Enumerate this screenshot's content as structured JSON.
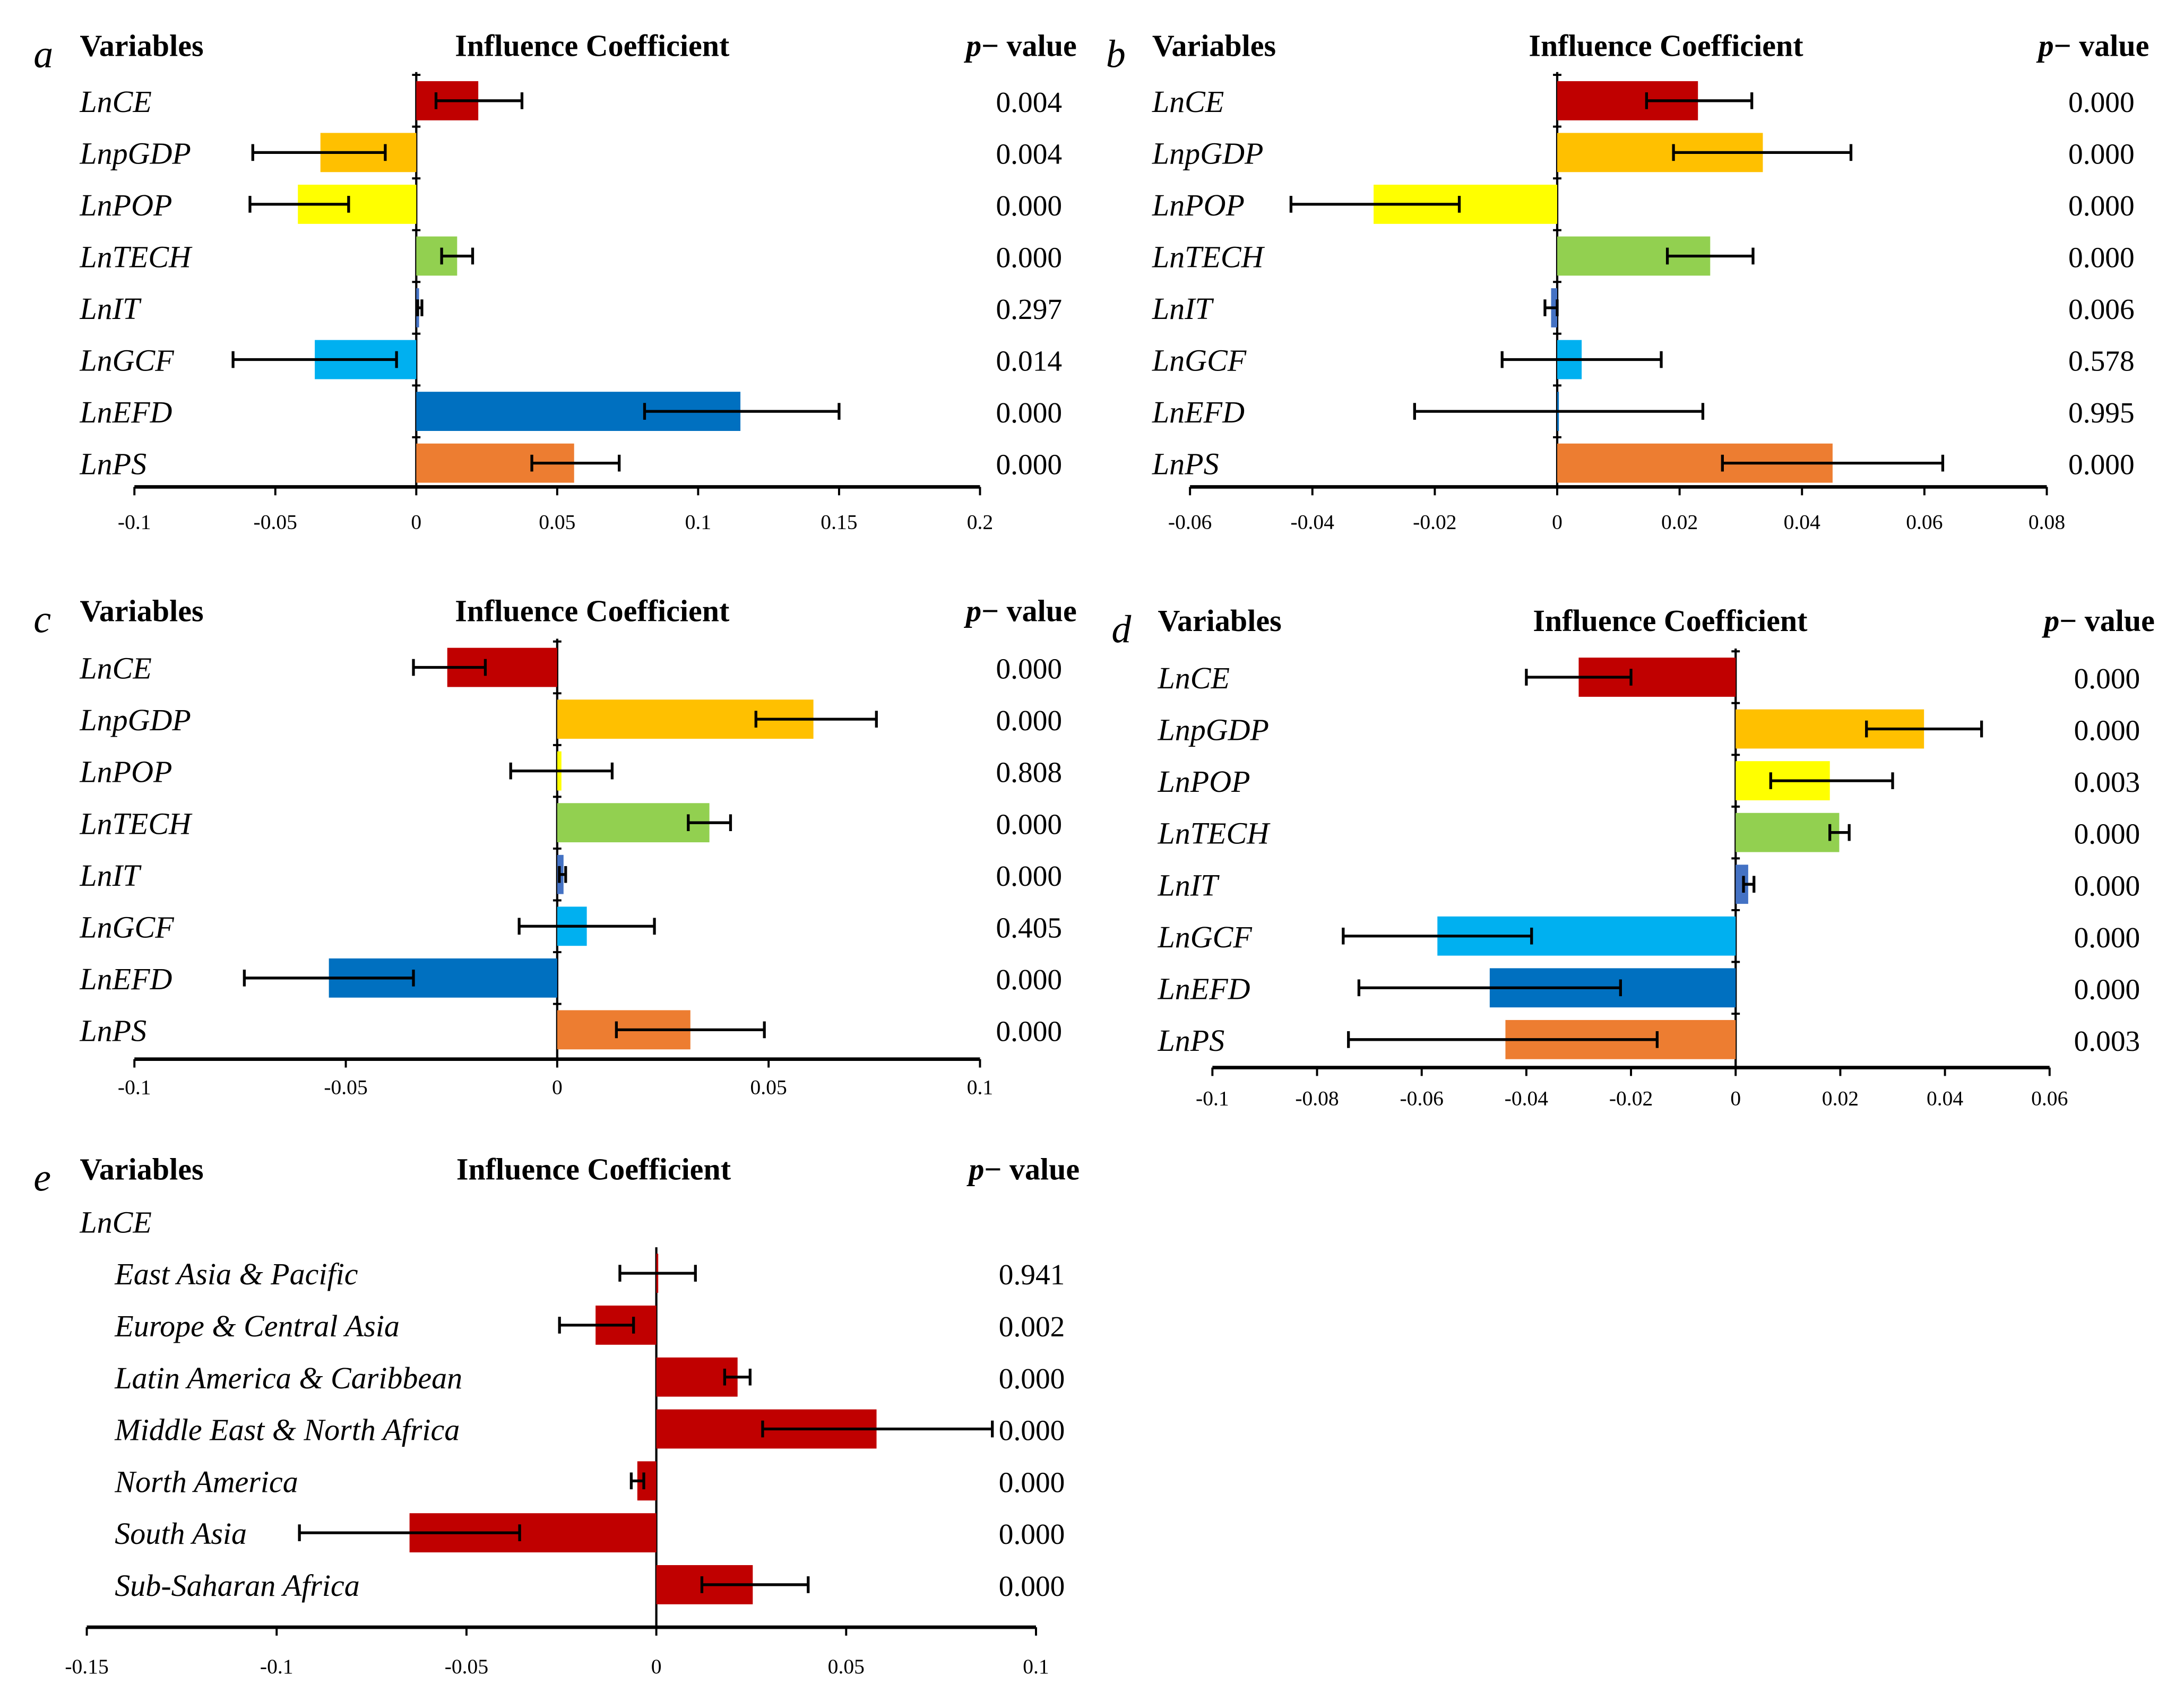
{
  "headers": {
    "variables": "Variables",
    "coefficient": "Influence Coefficient",
    "p_prefix": "p",
    "p_suffix": "− value"
  },
  "colors": {
    "LnCE": "#C00000",
    "LnpGDP": "#FFC000",
    "LnPOP": "#FFFF00",
    "LnTECH": "#92D050",
    "LnIT": "#4472C4",
    "LnGCF": "#00B0F0",
    "LnEFD": "#0070C0",
    "LnPS": "#ED7D31",
    "region": "#C00000"
  },
  "chart_data": [
    {
      "panel": "a",
      "type": "bar",
      "orientation": "horizontal",
      "xlim": [
        -0.1,
        0.2
      ],
      "ticks": [
        "-0.1",
        "-0.05",
        "0",
        "0.05",
        "0.1",
        "0.15",
        "0.2"
      ],
      "tick_values": [
        -0.1,
        -0.05,
        0,
        0.05,
        0.1,
        0.15,
        0.2
      ],
      "variables": [
        "LnCE",
        "LnpGDP",
        "LnPOP",
        "LnTECH",
        "LnIT",
        "LnGCF",
        "LnEFD",
        "LnPS"
      ],
      "values": [
        0.022,
        -0.034,
        -0.042,
        0.0145,
        0.001,
        -0.036,
        0.115,
        0.056
      ],
      "ci": [
        [
          0.007,
          0.0375
        ],
        [
          -0.058,
          -0.011
        ],
        [
          -0.059,
          -0.024
        ],
        [
          0.009,
          0.02
        ],
        [
          0.0005,
          0.002
        ],
        [
          -0.065,
          -0.007
        ],
        [
          0.081,
          0.15
        ],
        [
          0.041,
          0.072
        ]
      ],
      "p_values": [
        "0.004",
        "0.004",
        "0.000",
        "0.000",
        "0.297",
        "0.014",
        "0.000",
        "0.000"
      ]
    },
    {
      "panel": "b",
      "type": "bar",
      "orientation": "horizontal",
      "xlim": [
        -0.06,
        0.08
      ],
      "ticks": [
        "-0.06",
        "-0.04",
        "-0.02",
        "0",
        "0.02",
        "0.04",
        "0.06",
        "0.08"
      ],
      "tick_values": [
        -0.06,
        -0.04,
        -0.02,
        0,
        0.02,
        0.04,
        0.06,
        0.08
      ],
      "variables": [
        "LnCE",
        "LnpGDP",
        "LnPOP",
        "LnTECH",
        "LnIT",
        "LnGCF",
        "LnEFD",
        "LnPS"
      ],
      "values": [
        0.023,
        0.0336,
        -0.03,
        0.025,
        -0.001,
        0.004,
        0.0,
        0.045
      ],
      "ci": [
        [
          0.0146,
          0.0318
        ],
        [
          0.019,
          0.048
        ],
        [
          -0.0435,
          -0.016
        ],
        [
          0.018,
          0.032
        ],
        [
          -0.002,
          0.0
        ],
        [
          -0.009,
          0.017
        ],
        [
          -0.0233,
          0.0238
        ],
        [
          0.027,
          0.063
        ]
      ],
      "p_values": [
        "0.000",
        "0.000",
        "0.000",
        "0.000",
        "0.006",
        "0.578",
        "0.995",
        "0.000"
      ]
    },
    {
      "panel": "c",
      "type": "bar",
      "orientation": "horizontal",
      "xlim": [
        -0.1,
        0.1
      ],
      "ticks": [
        "-0.1",
        "-0.05",
        "0",
        "0.05",
        "0.1"
      ],
      "tick_values": [
        -0.1,
        -0.05,
        0,
        0.05,
        0.1
      ],
      "variables": [
        "LnCE",
        "LnpGDP",
        "LnPOP",
        "LnTECH",
        "LnIT",
        "LnGCF",
        "LnEFD",
        "LnPS"
      ],
      "values": [
        -0.026,
        0.0606,
        0.001,
        0.036,
        0.0015,
        0.007,
        -0.054,
        0.0315
      ],
      "ci": [
        [
          -0.034,
          -0.017
        ],
        [
          0.047,
          0.0755
        ],
        [
          -0.011,
          0.013
        ],
        [
          0.031,
          0.041
        ],
        [
          0.0005,
          0.002
        ],
        [
          -0.009,
          0.023
        ],
        [
          -0.074,
          -0.034
        ],
        [
          0.014,
          0.049
        ]
      ],
      "p_values": [
        "0.000",
        "0.000",
        "0.808",
        "0.000",
        "0.000",
        "0.405",
        "0.000",
        "0.000"
      ]
    },
    {
      "panel": "d",
      "type": "bar",
      "orientation": "horizontal",
      "xlim": [
        -0.1,
        0.06
      ],
      "ticks": [
        "-0.1",
        "-0.08",
        "-0.06",
        "-0.04",
        "-0.02",
        "0",
        "0.02",
        "0.04",
        "0.06"
      ],
      "tick_values": [
        -0.1,
        -0.08,
        -0.06,
        -0.04,
        -0.02,
        0,
        0.02,
        0.04,
        0.06
      ],
      "variables": [
        "LnCE",
        "LnpGDP",
        "LnPOP",
        "LnTECH",
        "LnIT",
        "LnGCF",
        "LnEFD",
        "LnPS"
      ],
      "values": [
        -0.03,
        0.036,
        0.018,
        0.0198,
        0.0024,
        -0.057,
        -0.047,
        -0.044
      ],
      "ci": [
        [
          -0.04,
          -0.02
        ],
        [
          0.025,
          0.047
        ],
        [
          0.0067,
          0.03
        ],
        [
          0.018,
          0.0217
        ],
        [
          0.0015,
          0.0035
        ],
        [
          -0.075,
          -0.039
        ],
        [
          -0.072,
          -0.022
        ],
        [
          -0.074,
          -0.015
        ]
      ],
      "p_values": [
        "0.000",
        "0.000",
        "0.003",
        "0.000",
        "0.000",
        "0.000",
        "0.000",
        "0.003"
      ]
    },
    {
      "panel": "e",
      "type": "bar",
      "orientation": "horizontal",
      "xlim": [
        -0.15,
        0.1
      ],
      "group_label": "LnCE",
      "ticks": [
        "-0.15",
        "-0.1",
        "-0.05",
        "0",
        "0.05",
        "0.1"
      ],
      "tick_values": [
        -0.15,
        -0.1,
        -0.05,
        0,
        0.05,
        0.1
      ],
      "variables": [
        "East Asia & Pacific",
        "Europe & Central Asia",
        "Latin America & Caribbean",
        "Middle East & North Africa",
        "North America",
        "South Asia",
        "Sub-Saharan Africa"
      ],
      "values": [
        0.0005,
        -0.016,
        0.0214,
        0.058,
        -0.005,
        -0.065,
        0.0254
      ],
      "ci": [
        [
          -0.0096,
          0.0103
        ],
        [
          -0.0255,
          -0.006
        ],
        [
          0.018,
          0.0247
        ],
        [
          0.028,
          0.0885
        ],
        [
          -0.0066,
          -0.0033
        ],
        [
          -0.094,
          -0.036
        ],
        [
          0.012,
          0.04
        ]
      ],
      "p_values": [
        "0.941",
        "0.002",
        "0.000",
        "0.000",
        "0.000",
        "0.000",
        "0.000"
      ]
    }
  ]
}
